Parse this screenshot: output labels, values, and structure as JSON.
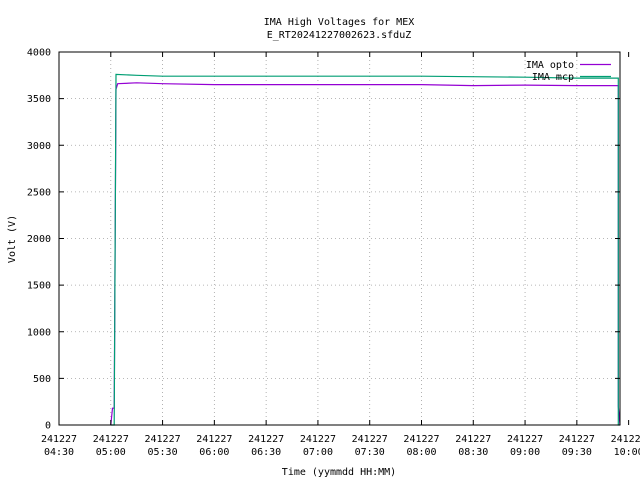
{
  "chart_data": {
    "type": "line",
    "title": "IMA High Voltages for MEX",
    "subtitle": "E_RT20241227002623.sfduZ",
    "xlabel": "Time (yymmdd HH:MM)",
    "ylabel": "Volt (V)",
    "xlim": [
      "241227 04:30",
      "241227 09:55"
    ],
    "ylim": [
      0,
      4000
    ],
    "grid": true,
    "legend_position": "top-right",
    "x_ticks": [
      {
        "date": "241227",
        "time": "04:30"
      },
      {
        "date": "241227",
        "time": "05:00"
      },
      {
        "date": "241227",
        "time": "05:30"
      },
      {
        "date": "241227",
        "time": "06:00"
      },
      {
        "date": "241227",
        "time": "06:30"
      },
      {
        "date": "241227",
        "time": "07:00"
      },
      {
        "date": "241227",
        "time": "07:30"
      },
      {
        "date": "241227",
        "time": "08:00"
      },
      {
        "date": "241227",
        "time": "08:30"
      },
      {
        "date": "241227",
        "time": "09:00"
      },
      {
        "date": "241227",
        "time": "09:30"
      },
      {
        "date": "241227",
        "time": "10:00"
      }
    ],
    "y_ticks": [
      "0",
      "500",
      "1000",
      "1500",
      "2000",
      "2500",
      "3000",
      "3500",
      "4000"
    ],
    "series": [
      {
        "name": "IMA opto",
        "color": "#9400d3",
        "points": [
          [
            "05:00",
            0
          ],
          [
            "05:01",
            180
          ],
          [
            "05:02",
            180
          ],
          [
            "05:03",
            3600
          ],
          [
            "05:04",
            3660
          ],
          [
            "05:15",
            3670
          ],
          [
            "05:30",
            3660
          ],
          [
            "06:00",
            3650
          ],
          [
            "07:00",
            3650
          ],
          [
            "08:00",
            3650
          ],
          [
            "08:30",
            3640
          ],
          [
            "09:00",
            3645
          ],
          [
            "09:30",
            3640
          ],
          [
            "09:54",
            3640
          ],
          [
            "09:54",
            200
          ],
          [
            "09:55",
            0
          ]
        ]
      },
      {
        "name": "IMA mcp",
        "color": "#009e73",
        "points": [
          [
            "05:00",
            0
          ],
          [
            "05:02",
            0
          ],
          [
            "05:03",
            3760
          ],
          [
            "05:15",
            3750
          ],
          [
            "05:30",
            3740
          ],
          [
            "06:00",
            3740
          ],
          [
            "07:00",
            3740
          ],
          [
            "08:00",
            3740
          ],
          [
            "09:00",
            3730
          ],
          [
            "09:30",
            3720
          ],
          [
            "09:54",
            3720
          ],
          [
            "09:54",
            0
          ],
          [
            "09:55",
            0
          ]
        ]
      }
    ]
  }
}
